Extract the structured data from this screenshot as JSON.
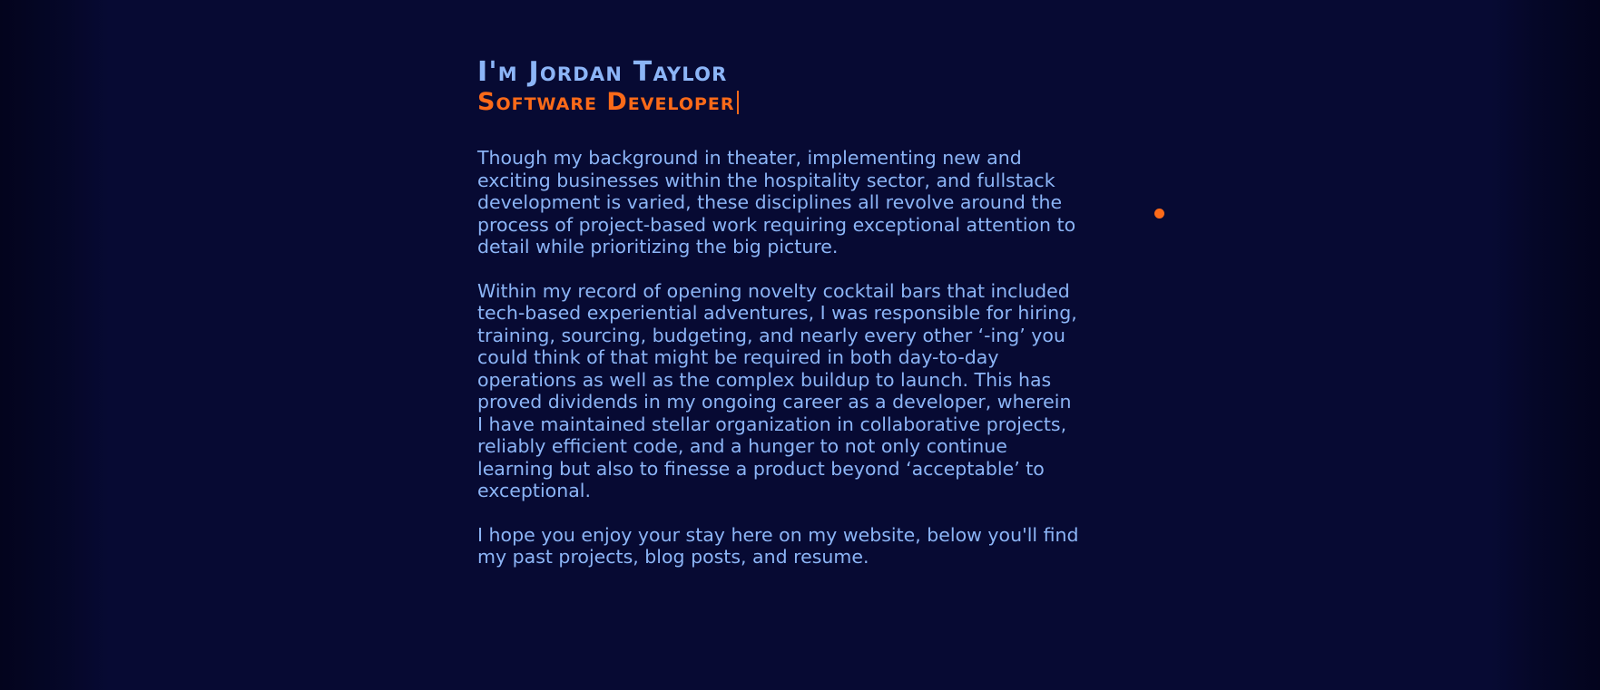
{
  "header": {
    "name": "I'm Jordan Taylor",
    "role": "Software Developer"
  },
  "bio": {
    "paragraphs": [
      "Though my background in theater, implementing new and exciting businesses within the hospitality sector, and fullstack development is varied, these disciplines all revolve around the process of project-based work requiring exceptional attention to detail while prioritizing the big picture.",
      "Within my record of opening novelty cocktail bars that included tech-based experiential adventures, I was responsible for hiring, training, sourcing, budgeting, and nearly every other ‘-ing’ you could think of that might be required in both day-to-day operations as well as the complex buildup to launch. This has proved dividends in my ongoing career as a developer, wherein I have maintained stellar organization in collaborative projects, reliably efficient code, and a hunger to not only continue learning but also to finesse a product beyond ‘acceptable’ to exceptional.",
      "I hope you enjoy your stay here on my website, below you'll find my past projects, blog posts, and resume."
    ]
  },
  "colors": {
    "background": "#070a33",
    "text": "#8cb5f7",
    "accent": "#fb6a19"
  }
}
